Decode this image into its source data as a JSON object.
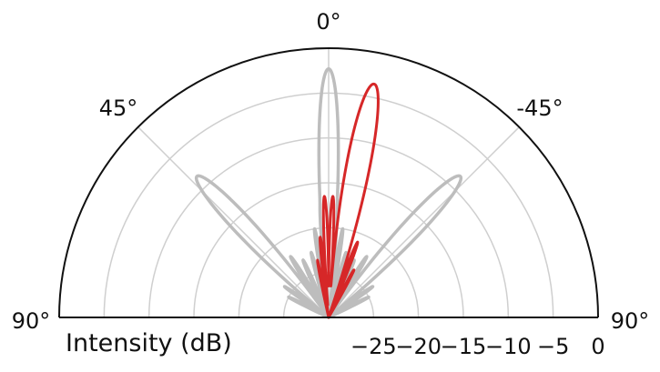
{
  "chart_data": {
    "type": "polar-line",
    "xlabel": "Intensity (dB)",
    "radial_ticks": [
      "−25",
      "−20",
      "−15",
      "−10",
      "−5",
      "0"
    ],
    "radial_range_db": [
      -30,
      0
    ],
    "angular_ticks": [
      {
        "label": "90°",
        "angle_deg": 90
      },
      {
        "label": "45°",
        "angle_deg": 45
      },
      {
        "label": "0°",
        "angle_deg": 0
      },
      {
        "label": "-45°",
        "angle_deg": -45
      },
      {
        "label": "90°",
        "angle_deg": -90
      }
    ],
    "angular_range_deg": [
      -90,
      90
    ],
    "grid": true,
    "series": [
      {
        "color": "#bdbdbd",
        "lobes": [
          {
            "center_deg": 0,
            "peak_db": -2.3,
            "half_width_deg": 3.5
          },
          {
            "center_deg": 43,
            "peak_db": -8.5,
            "half_width_deg": 5
          },
          {
            "center_deg": -43,
            "peak_db": -8.5,
            "half_width_deg": 5
          },
          {
            "center_deg": 4,
            "peak_db": -17,
            "half_width_deg": 2
          },
          {
            "center_deg": -4,
            "peak_db": -17,
            "half_width_deg": 2
          },
          {
            "center_deg": 9,
            "peak_db": -20,
            "half_width_deg": 2
          },
          {
            "center_deg": -9,
            "peak_db": -20,
            "half_width_deg": 2
          },
          {
            "center_deg": 15,
            "peak_db": -22.5,
            "half_width_deg": 2.5
          },
          {
            "center_deg": -15,
            "peak_db": -22.5,
            "half_width_deg": 2.5
          },
          {
            "center_deg": 24,
            "peak_db": -23,
            "half_width_deg": 3
          },
          {
            "center_deg": -24,
            "peak_db": -23,
            "half_width_deg": 3
          },
          {
            "center_deg": 32,
            "peak_db": -22,
            "half_width_deg": 3
          },
          {
            "center_deg": -32,
            "peak_db": -22,
            "half_width_deg": 3
          },
          {
            "center_deg": 55,
            "peak_db": -24,
            "half_width_deg": 3
          },
          {
            "center_deg": -55,
            "peak_db": -24,
            "half_width_deg": 3
          },
          {
            "center_deg": 63,
            "peak_db": -25,
            "half_width_deg": 3
          },
          {
            "center_deg": -63,
            "peak_db": -25,
            "half_width_deg": 3
          }
        ]
      },
      {
        "color": "#d62728",
        "lobes": [
          {
            "center_deg": -11,
            "peak_db": -3.5,
            "half_width_deg": 4.5
          },
          {
            "center_deg": 2,
            "peak_db": -16.5,
            "half_width_deg": 2
          },
          {
            "center_deg": -2,
            "peak_db": -16.5,
            "half_width_deg": 2
          },
          {
            "center_deg": 6,
            "peak_db": -21,
            "half_width_deg": 2
          },
          {
            "center_deg": -21,
            "peak_db": -21,
            "half_width_deg": 2.5
          },
          {
            "center_deg": 11,
            "peak_db": -23.5,
            "half_width_deg": 2
          },
          {
            "center_deg": -28,
            "peak_db": -24,
            "half_width_deg": 2.5
          }
        ]
      }
    ]
  }
}
